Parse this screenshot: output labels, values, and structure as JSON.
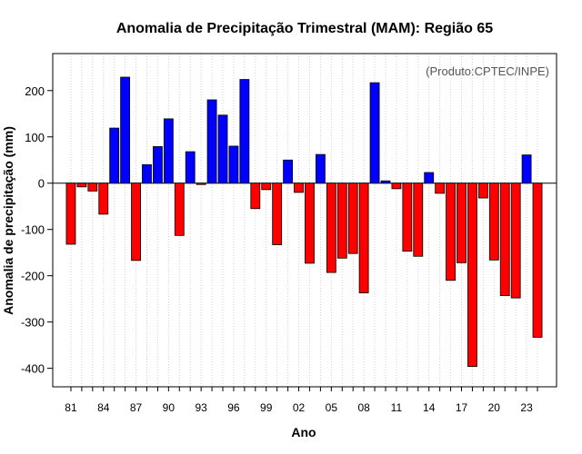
{
  "chart_data": {
    "type": "bar",
    "title": "Anomalia de Precipitação Trimestral (MAM): Região 65",
    "xlabel": "Ano",
    "ylabel": "Anomalia de precipitação (mm)",
    "note": "(Produto:CPTEC/INPE)",
    "ylim": [
      -440,
      280
    ],
    "yticks": [
      -400,
      -300,
      -200,
      -100,
      0,
      100,
      200
    ],
    "ytick_labels": [
      "-400",
      "-300",
      "-200",
      "-100",
      "0",
      "100",
      "200"
    ],
    "xtick_labels": [
      "81",
      "84",
      "87",
      "90",
      "93",
      "96",
      "99",
      "02",
      "05",
      "08",
      "11",
      "14",
      "17",
      "20",
      "23"
    ],
    "xtick_every": 3,
    "grid": true,
    "positive_color": "#0000ff",
    "negative_color": "#ff0000",
    "categories": [
      "1981",
      "1982",
      "1983",
      "1984",
      "1985",
      "1986",
      "1987",
      "1988",
      "1989",
      "1990",
      "1991",
      "1992",
      "1993",
      "1994",
      "1995",
      "1996",
      "1997",
      "1998",
      "1999",
      "2000",
      "2001",
      "2002",
      "2003",
      "2004",
      "2005",
      "2006",
      "2007",
      "2008",
      "2009",
      "2010",
      "2011",
      "2012",
      "2013",
      "2014",
      "2015",
      "2016",
      "2017",
      "2018",
      "2019",
      "2020",
      "2021",
      "2022",
      "2023",
      "2024"
    ],
    "values": [
      -132,
      -8,
      -17,
      -67,
      119,
      229,
      -167,
      40,
      79,
      139,
      -113,
      68,
      -3,
      180,
      147,
      80,
      224,
      -55,
      -14,
      -133,
      50,
      -20,
      -173,
      62,
      -193,
      -162,
      -152,
      -237,
      217,
      5,
      -12,
      -147,
      -158,
      23,
      -22,
      -210,
      -172,
      -396,
      -32,
      -166,
      -243,
      -248,
      61,
      -333
    ]
  }
}
